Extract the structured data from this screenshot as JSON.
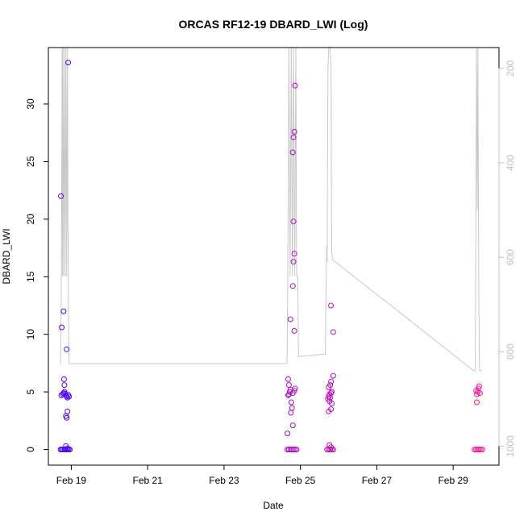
{
  "chart_data": {
    "type": "scatter",
    "title": "ORCAS RF12-19 DBARD_LWI (Log)",
    "xlabel": "Date",
    "ylabel": "DBARD_LWI",
    "x_ticks": [
      "Feb 19",
      "Feb 21",
      "Feb 23",
      "Feb 25",
      "Feb 27",
      "Feb 29"
    ],
    "x_tick_days": [
      19,
      21,
      23,
      25,
      27,
      29
    ],
    "xlim_days": [
      18.4,
      30.2
    ],
    "ylim": [
      -1.36,
      34.9
    ],
    "y_ticks": [
      0,
      5,
      10,
      15,
      20,
      25,
      30
    ],
    "y2_ticks": [
      200,
      400,
      600,
      800,
      1000
    ],
    "y2lim_reversed": [
      1040,
      156
    ],
    "points_color_start": "#4a00ff",
    "points_color_end": "#ff1493",
    "line_color": "#c8c8c8",
    "points": [
      [
        18.72,
        0
      ],
      [
        18.75,
        0
      ],
      [
        18.78,
        0
      ],
      [
        18.82,
        0
      ],
      [
        18.86,
        0
      ],
      [
        18.9,
        0
      ],
      [
        18.93,
        0
      ],
      [
        18.96,
        0
      ],
      [
        18.86,
        0.3
      ],
      [
        18.9,
        0.1
      ],
      [
        18.74,
        4.7
      ],
      [
        18.78,
        4.8
      ],
      [
        18.8,
        4.9
      ],
      [
        18.82,
        5.0
      ],
      [
        18.84,
        4.85
      ],
      [
        18.86,
        4.7
      ],
      [
        18.88,
        4.6
      ],
      [
        18.9,
        4.5
      ],
      [
        18.92,
        4.75
      ],
      [
        18.94,
        4.6
      ],
      [
        18.82,
        5.6
      ],
      [
        18.81,
        6.1
      ],
      [
        18.86,
        2.9
      ],
      [
        18.88,
        2.75
      ],
      [
        18.9,
        3.3
      ],
      [
        18.73,
        22.0
      ],
      [
        18.75,
        10.6
      ],
      [
        18.8,
        12.0
      ],
      [
        18.88,
        8.7
      ],
      [
        18.92,
        33.6
      ],
      [
        24.66,
        0
      ],
      [
        24.7,
        0
      ],
      [
        24.74,
        0
      ],
      [
        24.78,
        0
      ],
      [
        24.82,
        0
      ],
      [
        24.86,
        0
      ],
      [
        24.9,
        0
      ],
      [
        24.66,
        1.4
      ],
      [
        24.8,
        2.1
      ],
      [
        24.75,
        3.2
      ],
      [
        24.78,
        3.6
      ],
      [
        24.76,
        4.1
      ],
      [
        24.68,
        4.7
      ],
      [
        24.7,
        4.8
      ],
      [
        24.72,
        5.0
      ],
      [
        24.74,
        5.2
      ],
      [
        24.8,
        4.9
      ],
      [
        24.84,
        5.1
      ],
      [
        24.86,
        5.3
      ],
      [
        24.7,
        5.6
      ],
      [
        24.68,
        6.1
      ],
      [
        24.74,
        11.3
      ],
      [
        24.84,
        10.3
      ],
      [
        24.8,
        14.2
      ],
      [
        24.82,
        16.3
      ],
      [
        24.84,
        17.0
      ],
      [
        24.82,
        19.8
      ],
      [
        24.8,
        25.8
      ],
      [
        24.82,
        27.1
      ],
      [
        24.84,
        27.6
      ],
      [
        24.86,
        31.6
      ],
      [
        25.7,
        0
      ],
      [
        25.74,
        0
      ],
      [
        25.78,
        0
      ],
      [
        25.82,
        0
      ],
      [
        25.86,
        0
      ],
      [
        25.76,
        0.4
      ],
      [
        25.8,
        0.2
      ],
      [
        25.74,
        3.3
      ],
      [
        25.8,
        3.5
      ],
      [
        25.72,
        4.4
      ],
      [
        25.74,
        4.6
      ],
      [
        25.76,
        4.8
      ],
      [
        25.78,
        4.5
      ],
      [
        25.8,
        4.9
      ],
      [
        25.82,
        5.0
      ],
      [
        25.74,
        5.4
      ],
      [
        25.78,
        5.6
      ],
      [
        25.8,
        5.9
      ],
      [
        25.76,
        4.2
      ],
      [
        25.82,
        4.0
      ],
      [
        25.86,
        6.4
      ],
      [
        25.8,
        12.5
      ],
      [
        25.86,
        10.2
      ],
      [
        29.56,
        0
      ],
      [
        29.6,
        0
      ],
      [
        29.64,
        0
      ],
      [
        29.68,
        0
      ],
      [
        29.72,
        0
      ],
      [
        29.76,
        0
      ],
      [
        29.6,
        5.1
      ],
      [
        29.62,
        4.8
      ],
      [
        29.64,
        5.0
      ],
      [
        29.66,
        5.3
      ],
      [
        29.68,
        5.5
      ],
      [
        29.62,
        4.1
      ],
      [
        29.7,
        4.9
      ]
    ],
    "line": [
      [
        18.7,
        825
      ],
      [
        18.72,
        825
      ],
      [
        18.74,
        640
      ],
      [
        18.76,
        155
      ],
      [
        18.77,
        640
      ],
      [
        18.78,
        155
      ],
      [
        18.8,
        640
      ],
      [
        18.82,
        155
      ],
      [
        18.84,
        640
      ],
      [
        18.86,
        155
      ],
      [
        18.88,
        640
      ],
      [
        18.9,
        155
      ],
      [
        18.92,
        640
      ],
      [
        18.94,
        825
      ],
      [
        24.62,
        825
      ],
      [
        24.65,
        825
      ],
      [
        24.67,
        640
      ],
      [
        24.7,
        155
      ],
      [
        24.73,
        640
      ],
      [
        24.76,
        155
      ],
      [
        24.79,
        640
      ],
      [
        24.82,
        155
      ],
      [
        24.85,
        640
      ],
      [
        24.88,
        155
      ],
      [
        24.9,
        640
      ],
      [
        24.93,
        640
      ],
      [
        24.95,
        810
      ],
      [
        25.65,
        805
      ],
      [
        25.68,
        615
      ],
      [
        25.69,
        575
      ],
      [
        25.7,
        610
      ],
      [
        25.72,
        205
      ],
      [
        25.74,
        155
      ],
      [
        25.77,
        155
      ],
      [
        25.8,
        190
      ],
      [
        25.82,
        590
      ],
      [
        25.84,
        605
      ],
      [
        29.54,
        840
      ],
      [
        29.58,
        840
      ],
      [
        29.61,
        155
      ],
      [
        29.63,
        500
      ],
      [
        29.65,
        155
      ],
      [
        29.67,
        680
      ],
      [
        29.69,
        840
      ],
      [
        29.75,
        840
      ]
    ]
  }
}
